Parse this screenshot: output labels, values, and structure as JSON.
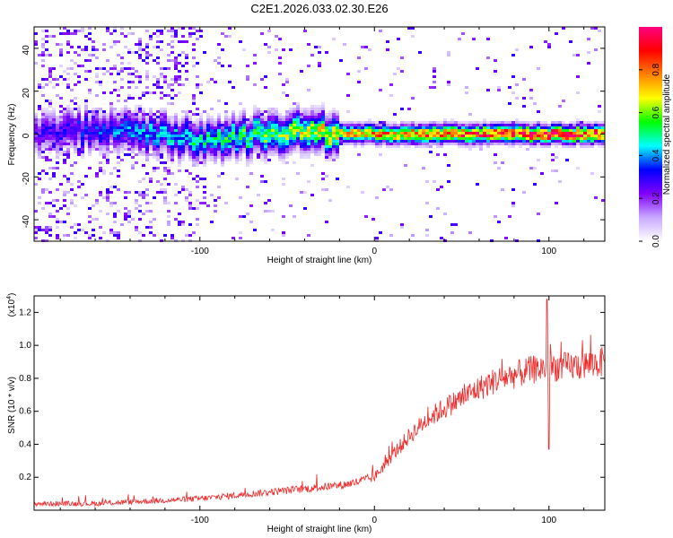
{
  "figure_title": "C2E1.2026.033.02.30.E26",
  "chart_data": [
    {
      "type": "heatmap",
      "title": "C2E1.2026.033.02.30.E26",
      "xlabel": "Height of straight line (km)",
      "ylabel": "Frequency (Hz)",
      "xlim": [
        -195,
        132
      ],
      "ylim": [
        -50,
        50
      ],
      "x_ticks": [
        -100,
        0,
        100
      ],
      "x_tick_labels": [
        "-100",
        "0",
        "100"
      ],
      "y_ticks": [
        -40,
        -20,
        0,
        20,
        40
      ],
      "y_tick_labels": [
        "-40",
        "-20",
        "0",
        "20",
        "40"
      ],
      "colorbar": {
        "label": "Normalized spectral amplitude",
        "range": [
          0,
          1
        ],
        "ticks": [
          0.0,
          0.2,
          0.4,
          0.6,
          0.8
        ],
        "tick_labels": [
          "0.0",
          "0.2",
          "0.4",
          "0.6",
          "0.8"
        ],
        "colors": [
          "#ffffff",
          "#c8a8ff",
          "#8000ff",
          "#0000ff",
          "#00ffff",
          "#00ff00",
          "#ffff00",
          "#ff8000",
          "#ff0000",
          "#ff0080"
        ]
      },
      "ridge": {
        "description_x": [
          -195,
          -150,
          -100,
          -60,
          -25,
          0,
          50,
          100,
          132
        ],
        "frequency": [
          0,
          2,
          -2,
          0,
          1,
          0,
          0,
          0,
          0
        ],
        "amplitude": [
          0.25,
          0.35,
          0.45,
          0.55,
          0.65,
          0.75,
          0.85,
          0.9,
          0.85
        ]
      }
    },
    {
      "type": "line",
      "xlabel": "Height of straight line (km)",
      "ylabel": "SNR (10 * v/v)",
      "y_scale_label": "(x10",
      "y_scale_exponent": "4",
      "y_scale_close": ")",
      "xlim": [
        -195,
        132
      ],
      "ylim": [
        0,
        1.3
      ],
      "x_ticks": [
        -100,
        0,
        100
      ],
      "x_tick_labels": [
        "-100",
        "0",
        "100"
      ],
      "y_ticks": [
        0.2,
        0.4,
        0.6,
        0.8,
        1.0,
        1.2
      ],
      "y_tick_labels": [
        "0.2",
        "0.4",
        "0.6",
        "0.8",
        "1.0",
        "1.2"
      ],
      "color": "#ee2a2a",
      "series": [
        {
          "name": "SNR",
          "x": [
            -195,
            -160,
            -140,
            -120,
            -100,
            -80,
            -60,
            -40,
            -20,
            -10,
            0,
            10,
            20,
            30,
            40,
            50,
            60,
            70,
            80,
            90,
            100,
            110,
            120,
            132
          ],
          "y": [
            0.04,
            0.04,
            0.05,
            0.06,
            0.07,
            0.09,
            0.11,
            0.13,
            0.15,
            0.17,
            0.2,
            0.33,
            0.45,
            0.55,
            0.62,
            0.68,
            0.74,
            0.79,
            0.82,
            0.85,
            0.87,
            0.87,
            0.88,
            0.9
          ]
        }
      ],
      "spikes": [
        {
          "x": 99,
          "y": 1.28
        },
        {
          "x": 100,
          "y": 0.37
        }
      ]
    }
  ]
}
